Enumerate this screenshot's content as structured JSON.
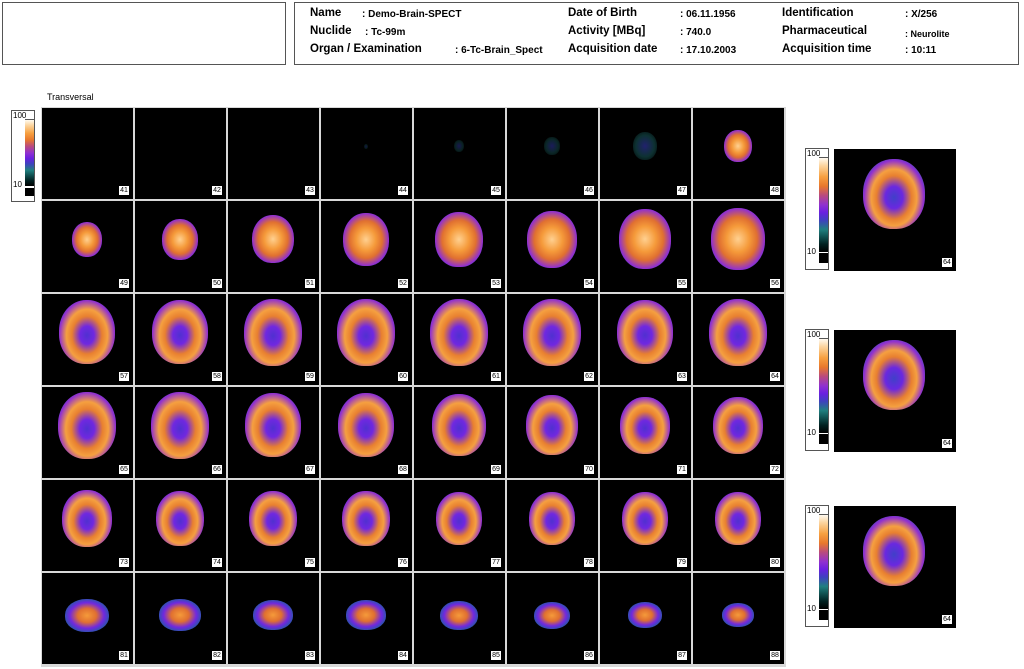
{
  "header": {
    "name_label": "Name",
    "name_value": ": Demo-Brain-SPECT",
    "nuclide_label": "Nuclide",
    "nuclide_value": ": Tc-99m",
    "organ_label": "Organ / Examination",
    "organ_value": ": 6-Tc-Brain_Spect",
    "dob_label": "Date of Birth",
    "dob_value": ": 06.11.1956",
    "activity_label": "Activity [MBq]",
    "activity_value": ": 740.0",
    "acq_date_label": "Acquisition date",
    "acq_date_value": ": 17.10.2003",
    "id_label": "Identification",
    "id_value": ": X/256",
    "pharma_label": "Pharmaceutical",
    "pharma_value": ": Neurolite",
    "acq_time_label": "Acquisition time",
    "acq_time_value": ": 10:11"
  },
  "view": {
    "label": "Transversal"
  },
  "colorbar": {
    "max_label": "100",
    "min_label": "10"
  },
  "colors": {
    "background": "#000000",
    "grid_lines": "#d8d8d8",
    "low": "#208080",
    "mid": "#7020e0",
    "high": "#f08830",
    "max": "#fff0d0"
  },
  "slices": [
    {
      "n": "41",
      "size": 0,
      "int": 0
    },
    {
      "n": "42",
      "size": 0,
      "int": 0
    },
    {
      "n": "43",
      "size": 0,
      "int": 0
    },
    {
      "n": "44",
      "size": 4,
      "int": 0.05
    },
    {
      "n": "45",
      "size": 10,
      "int": 0.1
    },
    {
      "n": "46",
      "size": 16,
      "int": 0.15
    },
    {
      "n": "47",
      "size": 24,
      "int": 0.25
    },
    {
      "n": "48",
      "size": 28,
      "int": 0.4
    },
    {
      "n": "49",
      "size": 30,
      "int": 0.6
    },
    {
      "n": "50",
      "size": 36,
      "int": 0.75
    },
    {
      "n": "51",
      "size": 42,
      "int": 0.9
    },
    {
      "n": "52",
      "size": 46,
      "int": 0.95
    },
    {
      "n": "53",
      "size": 48,
      "int": 1
    },
    {
      "n": "54",
      "size": 50,
      "int": 1
    },
    {
      "n": "55",
      "size": 52,
      "int": 0.95
    },
    {
      "n": "56",
      "size": 54,
      "int": 0.9
    },
    {
      "n": "57",
      "size": 56,
      "int": 0.85
    },
    {
      "n": "58",
      "size": 56,
      "int": 0.85
    },
    {
      "n": "59",
      "size": 58,
      "int": 0.8
    },
    {
      "n": "60",
      "size": 58,
      "int": 0.8
    },
    {
      "n": "61",
      "size": 58,
      "int": 0.8
    },
    {
      "n": "62",
      "size": 58,
      "int": 0.8
    },
    {
      "n": "63",
      "size": 56,
      "int": 0.85
    },
    {
      "n": "64",
      "size": 58,
      "int": 0.85
    },
    {
      "n": "65",
      "size": 58,
      "int": 0.85
    },
    {
      "n": "66",
      "size": 58,
      "int": 0.9
    },
    {
      "n": "67",
      "size": 56,
      "int": 0.9
    },
    {
      "n": "68",
      "size": 56,
      "int": 0.9
    },
    {
      "n": "69",
      "size": 54,
      "int": 0.85
    },
    {
      "n": "70",
      "size": 52,
      "int": 0.8
    },
    {
      "n": "71",
      "size": 50,
      "int": 0.8
    },
    {
      "n": "72",
      "size": 50,
      "int": 0.8
    },
    {
      "n": "73",
      "size": 50,
      "int": 0.75
    },
    {
      "n": "74",
      "size": 48,
      "int": 0.75
    },
    {
      "n": "75",
      "size": 48,
      "int": 0.75
    },
    {
      "n": "76",
      "size": 48,
      "int": 0.7
    },
    {
      "n": "77",
      "size": 46,
      "int": 0.7
    },
    {
      "n": "78",
      "size": 46,
      "int": 0.7
    },
    {
      "n": "79",
      "size": 46,
      "int": 0.7
    },
    {
      "n": "80",
      "size": 46,
      "int": 0.7
    },
    {
      "n": "81",
      "size": 44,
      "int": 0.8
    },
    {
      "n": "82",
      "size": 42,
      "int": 0.75
    },
    {
      "n": "83",
      "size": 40,
      "int": 0.75
    },
    {
      "n": "84",
      "size": 40,
      "int": 0.7
    },
    {
      "n": "85",
      "size": 38,
      "int": 0.65
    },
    {
      "n": "86",
      "size": 36,
      "int": 0.6
    },
    {
      "n": "87",
      "size": 34,
      "int": 0.55
    },
    {
      "n": "88",
      "size": 32,
      "int": 0.5
    }
  ],
  "side_views": [
    {
      "slice_label": "64"
    },
    {
      "slice_label": "64"
    },
    {
      "slice_label": "64"
    }
  ]
}
